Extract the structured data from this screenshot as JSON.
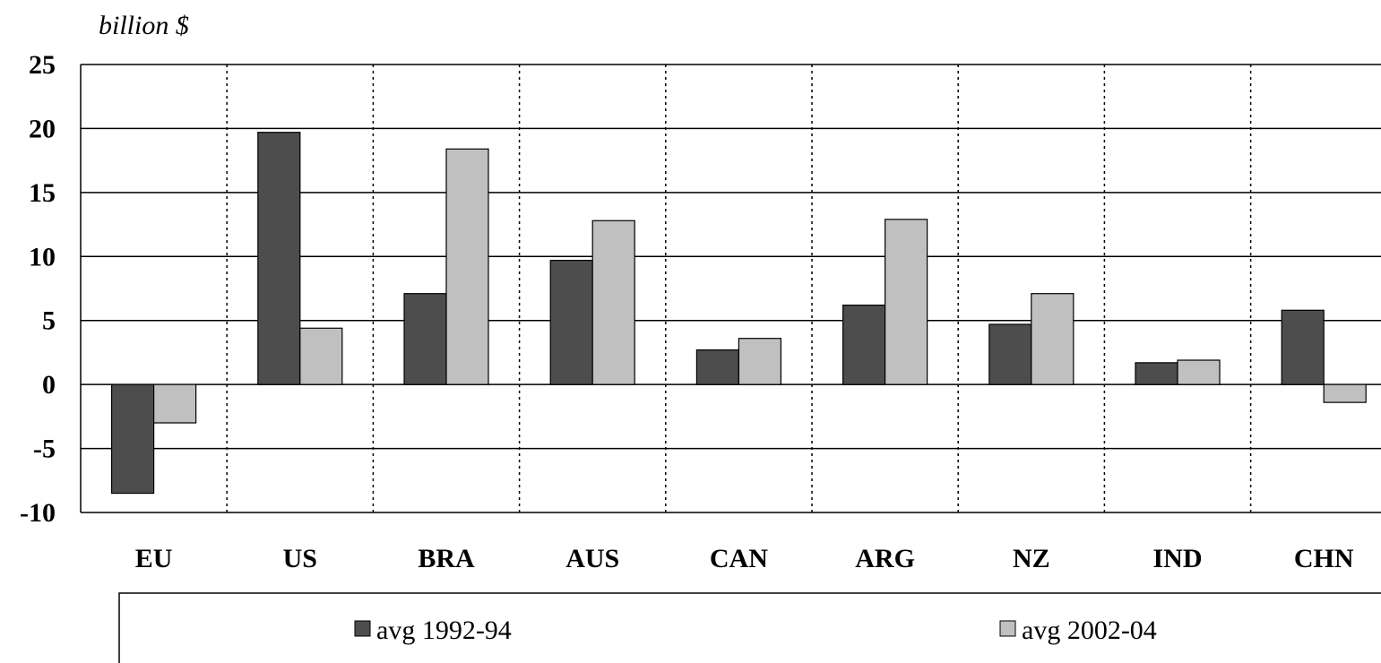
{
  "chart_data": {
    "type": "bar",
    "ylabel": "billion $",
    "xlabel": "",
    "ylim": [
      -10,
      25
    ],
    "yticks": [
      "25",
      "20",
      "15",
      "10",
      "5",
      "0",
      "-5",
      "-10"
    ],
    "categories": [
      "EU",
      "US",
      "BRA",
      "AUS",
      "CAN",
      "ARG",
      "NZ",
      "IND",
      "CHN"
    ],
    "series": [
      {
        "name": "avg 1992-94",
        "color": "#4d4d4d",
        "values": [
          -8.5,
          19.7,
          7.1,
          9.7,
          2.7,
          6.2,
          4.7,
          1.7,
          5.8
        ]
      },
      {
        "name": "avg 2002-04",
        "color": "#c0c0c0",
        "values": [
          -3.0,
          4.4,
          18.4,
          12.8,
          3.6,
          12.9,
          7.1,
          1.9,
          -1.4
        ]
      }
    ],
    "grid": "horizontal solid, vertical dotted category separators",
    "legend": "bottom"
  }
}
